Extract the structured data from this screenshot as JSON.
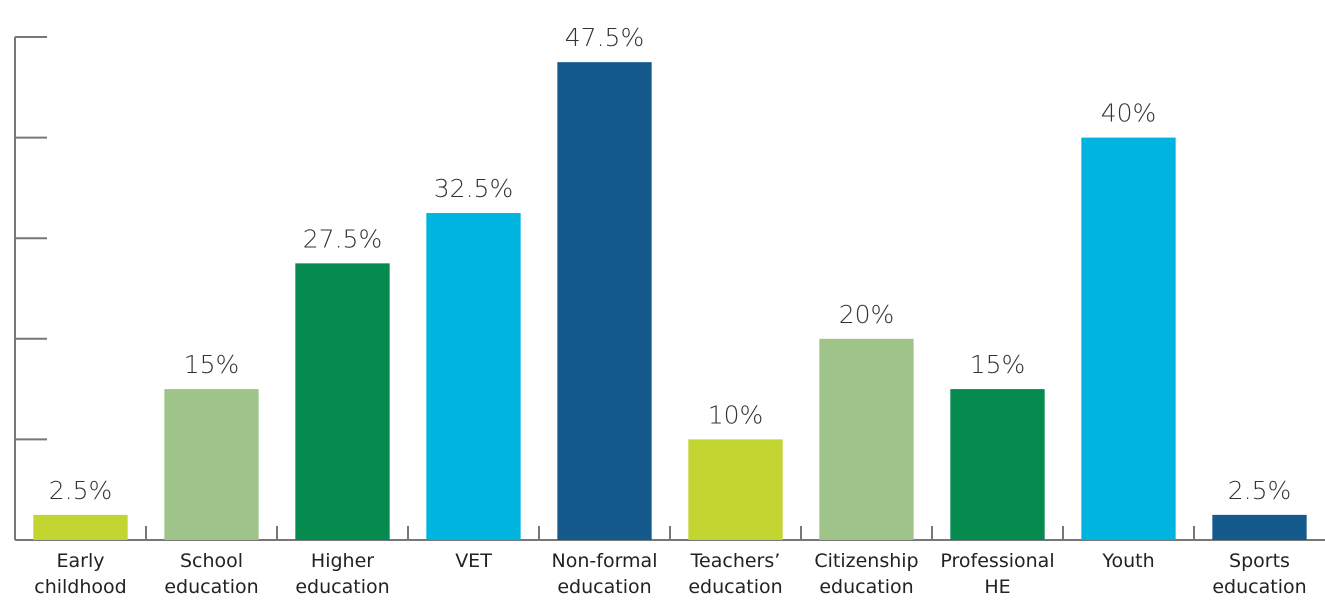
{
  "chart_data": {
    "type": "bar",
    "categories": [
      "Early\nchildhood",
      "School\neducation",
      "Higher\neducation",
      "VET",
      "Non-formal\neducation",
      "Teachers’\neducation",
      "Citizenship\neducation",
      "Professional\nHE",
      "Youth",
      "Sports\neducation"
    ],
    "values": [
      2.5,
      15,
      27.5,
      32.5,
      47.5,
      10,
      20,
      15,
      40,
      2.5
    ],
    "value_labels": [
      "2.5%",
      "15%",
      "27.5%",
      "32.5%",
      "47.5%",
      "10%",
      "20%",
      "15%",
      "40%",
      "2.5%"
    ],
    "colors": [
      "#c2d530",
      "#9fc48a",
      "#058a50",
      "#00b4e0",
      "#155a8c",
      "#c2d530",
      "#9fc48a",
      "#058a50",
      "#00b4e0",
      "#155a8c"
    ],
    "ylim": [
      0,
      50
    ],
    "yticks": [
      0,
      10,
      20,
      30,
      40,
      50
    ],
    "grid": false
  }
}
